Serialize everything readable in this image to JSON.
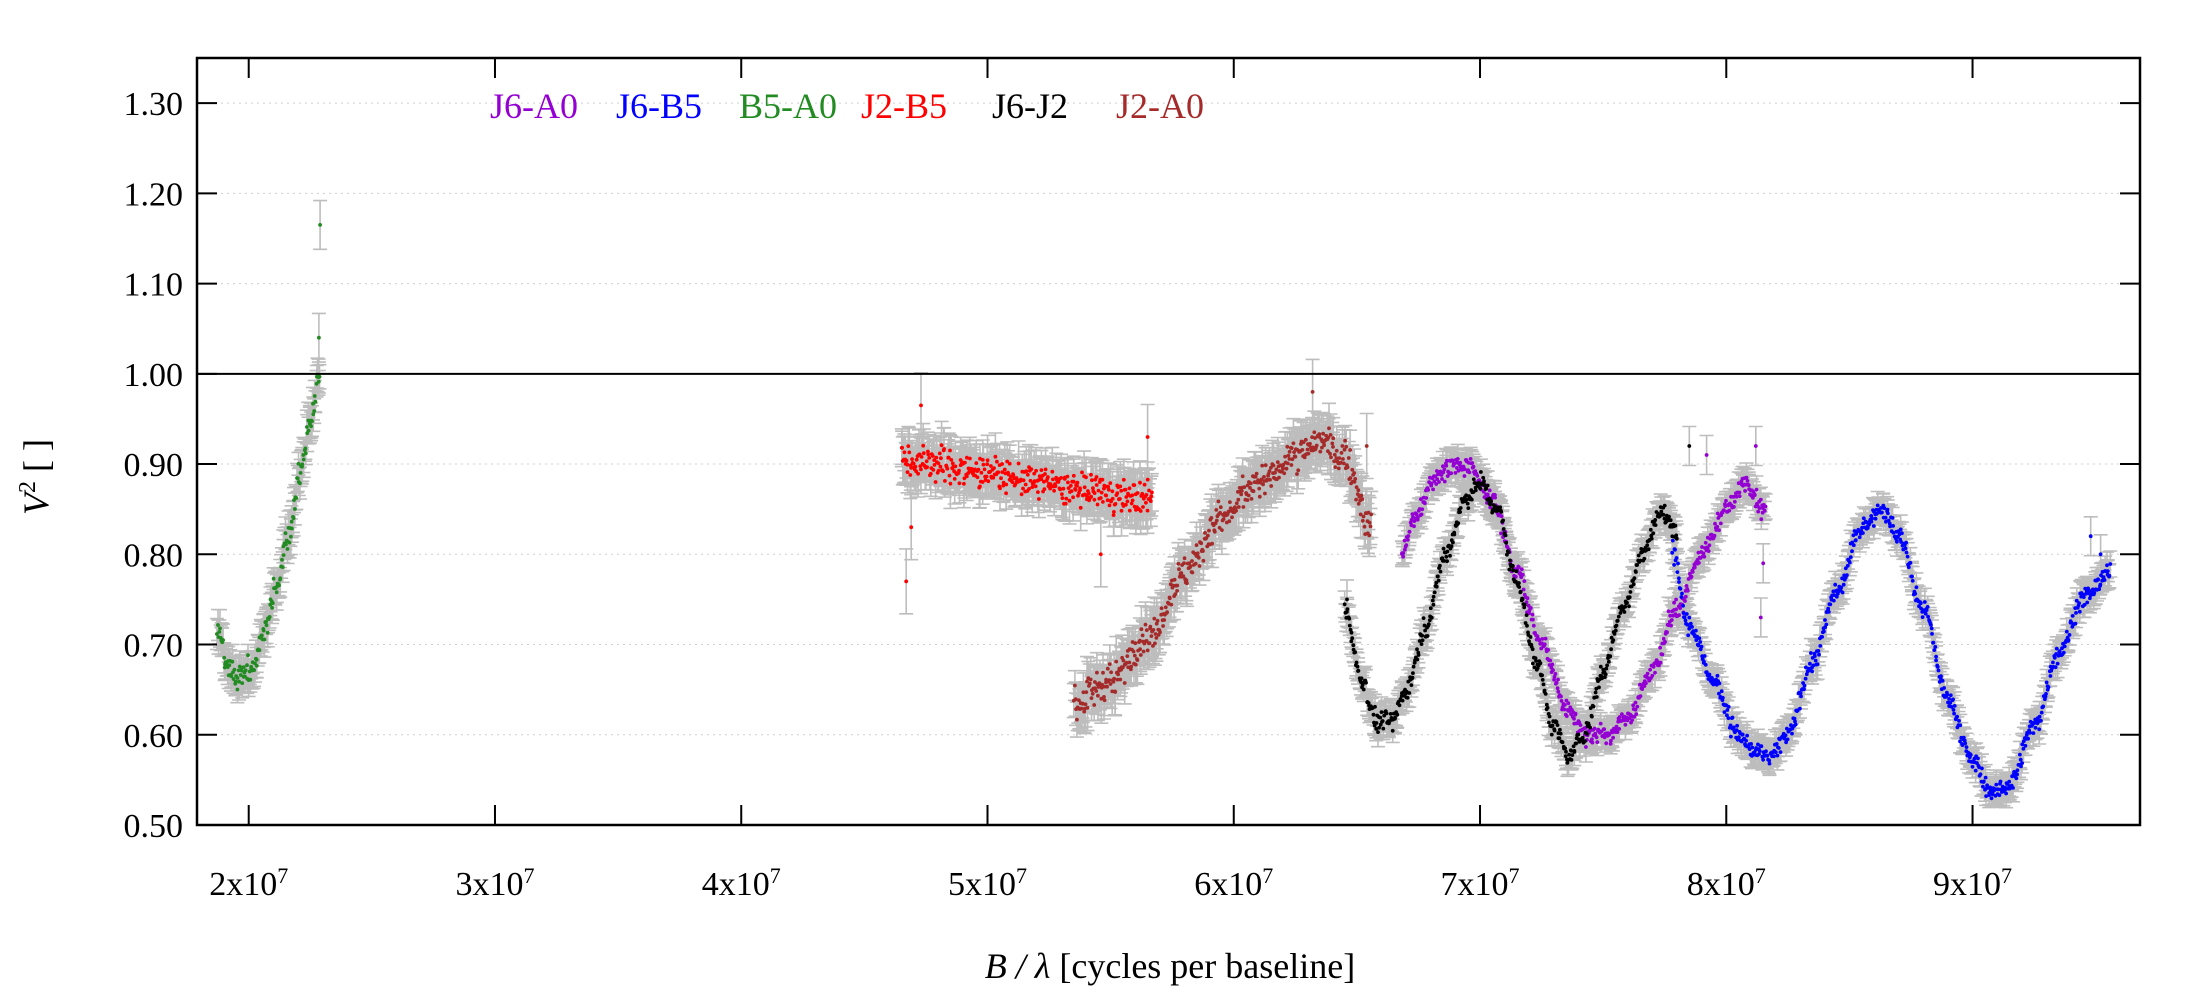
{
  "chart_data": {
    "type": "scatter",
    "title": "",
    "xlabel": {
      "italic": "B / λ",
      "rest": " [cycles per baseline]"
    },
    "ylabel": {
      "base": "V",
      "sup": "2",
      "rest": " [ ]"
    },
    "xlim": [
      17900000,
      96800000
    ],
    "ylim": [
      0.5,
      1.35
    ],
    "x_ticks": [
      {
        "value": 20000000,
        "base": "2x10",
        "exp": "7"
      },
      {
        "value": 30000000,
        "base": "3x10",
        "exp": "7"
      },
      {
        "value": 40000000,
        "base": "4x10",
        "exp": "7"
      },
      {
        "value": 50000000,
        "base": "5x10",
        "exp": "7"
      },
      {
        "value": 60000000,
        "base": "6x10",
        "exp": "7"
      },
      {
        "value": 70000000,
        "base": "7x10",
        "exp": "7"
      },
      {
        "value": 80000000,
        "base": "8x10",
        "exp": "7"
      },
      {
        "value": 90000000,
        "base": "9x10",
        "exp": "7"
      }
    ],
    "y_ticks": [
      {
        "value": 0.5,
        "label": "0.50"
      },
      {
        "value": 0.6,
        "label": "0.60"
      },
      {
        "value": 0.7,
        "label": "0.70"
      },
      {
        "value": 0.8,
        "label": "0.80"
      },
      {
        "value": 0.9,
        "label": "0.90"
      },
      {
        "value": 1.0,
        "label": "1.00"
      },
      {
        "value": 1.1,
        "label": "1.10"
      },
      {
        "value": 1.2,
        "label": "1.20"
      },
      {
        "value": 1.3,
        "label": "1.30"
      }
    ],
    "reference_line": 1.0,
    "grid": "horizontal dotted",
    "legend_position": "top-left",
    "error_bar_color": "#bdbdbd",
    "series": [
      {
        "name": "J6-A0",
        "color": "#9400d3",
        "x_range": [
          66800000,
          81600000
        ],
        "y_err": 0.012,
        "profile": [
          [
            66800000,
            0.8
          ],
          [
            67400000,
            0.84
          ],
          [
            68000000,
            0.88
          ],
          [
            68800000,
            0.9
          ],
          [
            69500000,
            0.895
          ],
          [
            70500000,
            0.86
          ],
          [
            71500000,
            0.78
          ],
          [
            72500000,
            0.7
          ],
          [
            73500000,
            0.63
          ],
          [
            74300000,
            0.6
          ],
          [
            75200000,
            0.6
          ],
          [
            76000000,
            0.62
          ],
          [
            77000000,
            0.67
          ],
          [
            78000000,
            0.74
          ],
          [
            79000000,
            0.8
          ],
          [
            80000000,
            0.85
          ],
          [
            80800000,
            0.88
          ],
          [
            81500000,
            0.85
          ]
        ],
        "outliers": [
          [
            81400000,
            0.73
          ],
          [
            81500000,
            0.79
          ],
          [
            79200000,
            0.91
          ],
          [
            81200000,
            0.92
          ]
        ]
      },
      {
        "name": "J6-B5",
        "color": "#0000ff",
        "x_range": [
          77800000,
          95600000
        ],
        "y_err": 0.012,
        "profile": [
          [
            77800000,
            0.8
          ],
          [
            78500000,
            0.72
          ],
          [
            79500000,
            0.66
          ],
          [
            80500000,
            0.6
          ],
          [
            81200000,
            0.58
          ],
          [
            81800000,
            0.575
          ],
          [
            82500000,
            0.6
          ],
          [
            83500000,
            0.68
          ],
          [
            84500000,
            0.76
          ],
          [
            85500000,
            0.83
          ],
          [
            86300000,
            0.85
          ],
          [
            87000000,
            0.82
          ],
          [
            88000000,
            0.74
          ],
          [
            89000000,
            0.64
          ],
          [
            90000000,
            0.57
          ],
          [
            90800000,
            0.535
          ],
          [
            91500000,
            0.545
          ],
          [
            92500000,
            0.61
          ],
          [
            93500000,
            0.69
          ],
          [
            94500000,
            0.75
          ],
          [
            95600000,
            0.78
          ]
        ],
        "outliers": [
          [
            94800000,
            0.82
          ],
          [
            95200000,
            0.8
          ]
        ]
      },
      {
        "name": "B5-A0",
        "color": "#228b22",
        "x_range": [
          18700000,
          22900000
        ],
        "y_err": 0.015,
        "profile": [
          [
            18700000,
            0.72
          ],
          [
            19100000,
            0.68
          ],
          [
            19600000,
            0.665
          ],
          [
            20100000,
            0.67
          ],
          [
            20600000,
            0.71
          ],
          [
            21100000,
            0.76
          ],
          [
            21600000,
            0.82
          ],
          [
            22100000,
            0.89
          ],
          [
            22500000,
            0.95
          ],
          [
            22900000,
            1.0
          ]
        ],
        "outliers": [
          [
            22900000,
            1.165
          ],
          [
            22850000,
            1.04
          ]
        ]
      },
      {
        "name": "J2-B5",
        "color": "#ff0000",
        "x_range": [
          46500000,
          56700000
        ],
        "y_err": 0.02,
        "profile": [
          [
            46500000,
            0.905
          ],
          [
            48000000,
            0.9
          ],
          [
            50000000,
            0.89
          ],
          [
            52000000,
            0.88
          ],
          [
            54000000,
            0.87
          ],
          [
            55500000,
            0.865
          ],
          [
            56700000,
            0.86
          ]
        ],
        "outliers": [
          [
            46700000,
            0.77
          ],
          [
            47300000,
            0.965
          ],
          [
            54600000,
            0.8
          ],
          [
            56500000,
            0.93
          ],
          [
            46900000,
            0.83
          ]
        ]
      },
      {
        "name": "J6-J2",
        "color": "#000000",
        "x_range": [
          64500000,
          78000000
        ],
        "y_err": 0.012,
        "profile": [
          [
            64500000,
            0.74
          ],
          [
            65200000,
            0.66
          ],
          [
            65800000,
            0.615
          ],
          [
            66400000,
            0.615
          ],
          [
            67000000,
            0.65
          ],
          [
            67800000,
            0.72
          ],
          [
            68600000,
            0.8
          ],
          [
            69400000,
            0.86
          ],
          [
            70000000,
            0.88
          ],
          [
            70700000,
            0.85
          ],
          [
            71500000,
            0.77
          ],
          [
            72300000,
            0.68
          ],
          [
            73000000,
            0.61
          ],
          [
            73600000,
            0.575
          ],
          [
            74200000,
            0.6
          ],
          [
            75000000,
            0.67
          ],
          [
            75800000,
            0.74
          ],
          [
            76600000,
            0.8
          ],
          [
            77300000,
            0.845
          ],
          [
            78000000,
            0.83
          ]
        ],
        "outliers": [
          [
            78500000,
            0.92
          ],
          [
            64600000,
            0.75
          ]
        ]
      },
      {
        "name": "J2-A0",
        "color": "#a52a2a",
        "x_range": [
          53500000,
          65600000
        ],
        "y_err": 0.02,
        "profile": [
          [
            53500000,
            0.63
          ],
          [
            55000000,
            0.66
          ],
          [
            56500000,
            0.71
          ],
          [
            58000000,
            0.78
          ],
          [
            59500000,
            0.84
          ],
          [
            61000000,
            0.88
          ],
          [
            62500000,
            0.91
          ],
          [
            63500000,
            0.925
          ],
          [
            64500000,
            0.905
          ],
          [
            65600000,
            0.83
          ]
        ],
        "outliers": [
          [
            65400000,
            0.92
          ],
          [
            63200000,
            0.98
          ]
        ]
      }
    ]
  }
}
